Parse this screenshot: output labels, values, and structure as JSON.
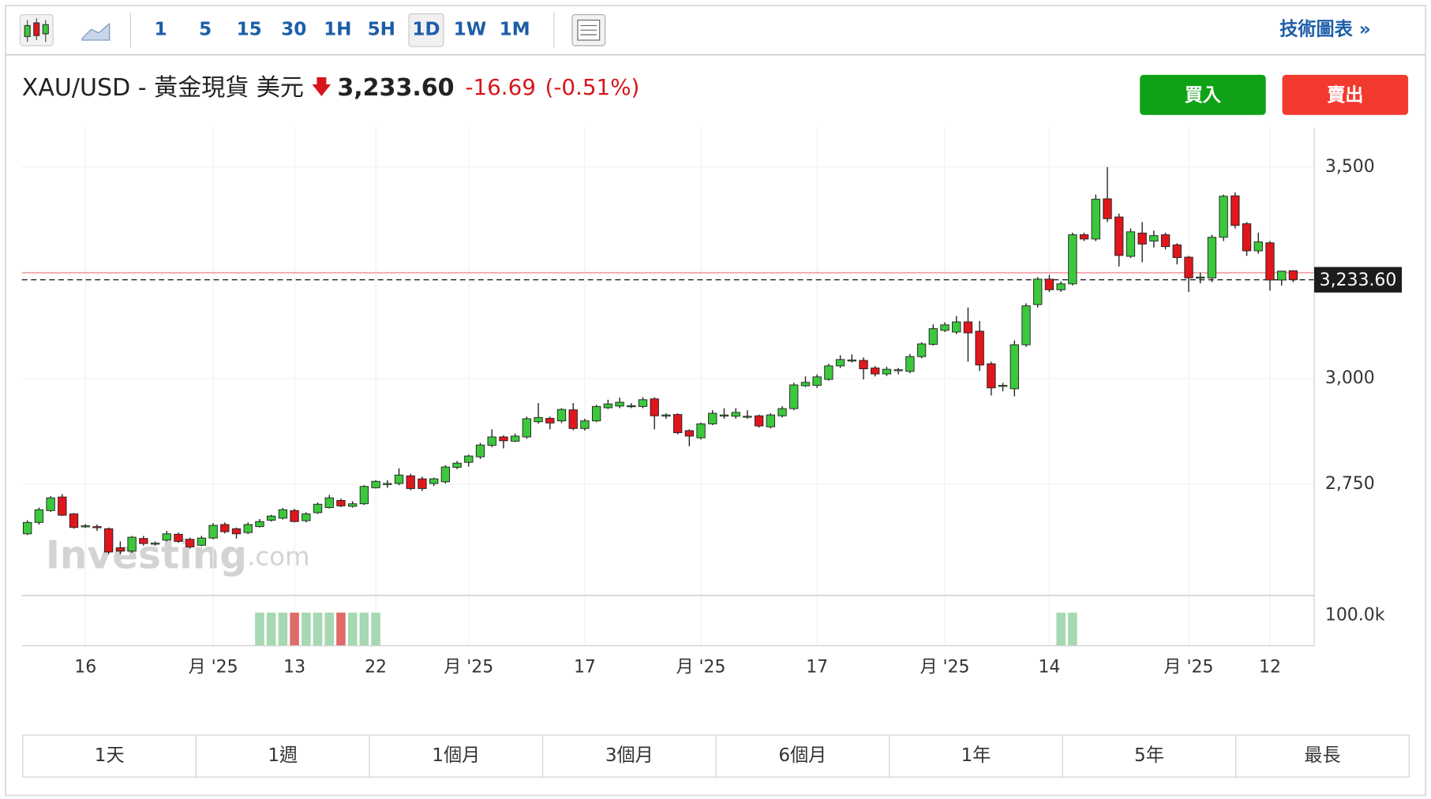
{
  "toolbar": {
    "intervals": [
      "1",
      "5",
      "15",
      "30",
      "1H",
      "5H",
      "1D",
      "1W",
      "1M"
    ],
    "active_interval": 6,
    "technical_link": "技術圖表 »"
  },
  "header": {
    "symbol": "XAU/USD - 黃金現貨 美元",
    "change": "-16.69",
    "change_percent": "(-0.51%)",
    "buy": "買入",
    "sell": "賣出"
  },
  "watermark": {
    "brand": "Investing",
    "suffix": ".com"
  },
  "chart_data": {
    "type": "candlestick",
    "categories": [
      null,
      null,
      null,
      null,
      null,
      "16",
      null,
      null,
      null,
      null,
      null,
      null,
      null,
      null,
      null,
      null,
      "月 '25",
      null,
      null,
      null,
      null,
      null,
      null,
      "13",
      null,
      null,
      null,
      null,
      null,
      null,
      "22",
      null,
      null,
      null,
      null,
      null,
      null,
      null,
      "月 '25",
      null,
      null,
      null,
      null,
      null,
      null,
      null,
      null,
      null,
      "17",
      null,
      null,
      null,
      null,
      null,
      null,
      null,
      null,
      null,
      "月 '25",
      null,
      null,
      null,
      null,
      null,
      null,
      null,
      null,
      null,
      "17",
      null,
      null,
      null,
      null,
      null,
      null,
      null,
      null,
      null,
      null,
      "月 '25",
      null,
      null,
      null,
      null,
      null,
      null,
      null,
      null,
      "14",
      null,
      null,
      null,
      null,
      null,
      null,
      null,
      null,
      null,
      null,
      null,
      "月 '25",
      null,
      null,
      null,
      null,
      null,
      null,
      "12",
      null,
      null
    ],
    "open": [
      2633,
      2660,
      2688,
      2720,
      2680,
      2651,
      2650,
      2645,
      2600,
      2592,
      2622,
      2610,
      2618,
      2632,
      2620,
      2606,
      2623,
      2655,
      2645,
      2636,
      2650,
      2665,
      2670,
      2688,
      2664,
      2683,
      2695,
      2712,
      2698,
      2704,
      2742,
      2750,
      2752,
      2770,
      2763,
      2752,
      2756,
      2790,
      2802,
      2815,
      2842,
      2862,
      2852,
      2862,
      2898,
      2906,
      2900,
      2926,
      2882,
      2900,
      2931,
      2935,
      2935,
      2934,
      2952,
      2913,
      2915,
      2877,
      2860,
      2893,
      2913,
      2911,
      2910,
      2912,
      2886,
      2912,
      2929,
      2983,
      2984,
      2998,
      3030,
      3043,
      3043,
      3025,
      3011,
      3020,
      3017,
      3052,
      3081,
      3114,
      3110,
      3134,
      3112,
      3035,
      2983,
      2976,
      3080,
      3175,
      3235,
      3210,
      3224,
      3340,
      3330,
      3425,
      3382,
      3289,
      3344,
      3325,
      3340,
      3316,
      3287,
      3238,
      3238,
      3334,
      3432,
      3366,
      3302,
      3321,
      3233,
      3255
    ],
    "high": [
      2665,
      2695,
      2722,
      2727,
      2682,
      2656,
      2655,
      2648,
      2615,
      2628,
      2628,
      2615,
      2640,
      2636,
      2624,
      2628,
      2658,
      2660,
      2648,
      2660,
      2668,
      2678,
      2694,
      2692,
      2684,
      2707,
      2725,
      2716,
      2710,
      2748,
      2760,
      2760,
      2788,
      2775,
      2768,
      2766,
      2795,
      2805,
      2820,
      2848,
      2880,
      2866,
      2870,
      2910,
      2942,
      2910,
      2930,
      2942,
      2905,
      2938,
      2950,
      2955,
      2942,
      2956,
      2956,
      2918,
      2918,
      2880,
      2896,
      2925,
      2930,
      2930,
      2925,
      2915,
      2918,
      2935,
      2990,
      3005,
      3010,
      3035,
      3055,
      3057,
      3050,
      3030,
      3028,
      3025,
      3058,
      3086,
      3128,
      3133,
      3148,
      3168,
      3136,
      3040,
      2990,
      3090,
      3178,
      3240,
      3245,
      3230,
      3345,
      3345,
      3435,
      3500,
      3390,
      3355,
      3370,
      3350,
      3345,
      3320,
      3290,
      3250,
      3340,
      3435,
      3440,
      3370,
      3345,
      3325,
      3255,
      3256
    ],
    "low": [
      2630,
      2655,
      2685,
      2675,
      2645,
      2647,
      2640,
      2585,
      2585,
      2588,
      2605,
      2605,
      2615,
      2612,
      2598,
      2604,
      2620,
      2634,
      2622,
      2632,
      2648,
      2662,
      2667,
      2660,
      2660,
      2680,
      2693,
      2696,
      2695,
      2701,
      2740,
      2742,
      2748,
      2736,
      2734,
      2746,
      2752,
      2786,
      2792,
      2810,
      2838,
      2835,
      2850,
      2858,
      2893,
      2880,
      2895,
      2878,
      2877,
      2897,
      2928,
      2930,
      2930,
      2930,
      2880,
      2905,
      2868,
      2840,
      2856,
      2890,
      2905,
      2905,
      2905,
      2884,
      2882,
      2908,
      2925,
      2980,
      2978,
      2995,
      3025,
      3038,
      2998,
      3005,
      3006,
      3010,
      3013,
      3048,
      3078,
      3110,
      3105,
      3040,
      3018,
      2960,
      2970,
      2958,
      3075,
      3168,
      3205,
      3205,
      3220,
      3325,
      3325,
      3370,
      3265,
      3285,
      3275,
      3310,
      3305,
      3270,
      3205,
      3225,
      3228,
      3325,
      3355,
      3290,
      3295,
      3208,
      3220,
      3228
    ],
    "close": [
      2660,
      2690,
      2718,
      2677,
      2648,
      2652,
      2648,
      2590,
      2592,
      2625,
      2610,
      2611,
      2633,
      2615,
      2602,
      2623,
      2653,
      2638,
      2633,
      2655,
      2662,
      2675,
      2690,
      2662,
      2680,
      2703,
      2718,
      2699,
      2704,
      2745,
      2757,
      2752,
      2772,
      2740,
      2740,
      2763,
      2791,
      2800,
      2817,
      2843,
      2862,
      2853,
      2864,
      2905,
      2908,
      2895,
      2927,
      2882,
      2900,
      2934,
      2940,
      2944,
      2936,
      2950,
      2912,
      2914,
      2872,
      2864,
      2893,
      2918,
      2914,
      2920,
      2911,
      2888,
      2914,
      2929,
      2985,
      2991,
      3004,
      3030,
      3045,
      3044,
      3023,
      3011,
      3022,
      3021,
      3052,
      3082,
      3118,
      3127,
      3134,
      3108,
      3032,
      2978,
      2984,
      3080,
      3172,
      3235,
      3210,
      3224,
      3340,
      3330,
      3424,
      3378,
      3291,
      3347,
      3318,
      3338,
      3312,
      3286,
      3238,
      3240,
      3334,
      3431,
      3362,
      3302,
      3323,
      3233,
      3254,
      3233.6
    ],
    "up_color": "#3cc83c",
    "down_color": "#e0161c",
    "ylim": [
      2487,
      3593
    ],
    "yticks": [
      {
        "value": 2750,
        "label": "2,750"
      },
      {
        "value": 3000,
        "label": "3,000"
      },
      {
        "value": 3500,
        "label": "3,500"
      }
    ],
    "grid": true,
    "last_price": {
      "value": 3233.6,
      "label": "3,233.60"
    },
    "previous_close": 3250.29,
    "volume": {
      "values": [
        null,
        null,
        null,
        null,
        null,
        null,
        null,
        null,
        null,
        null,
        null,
        null,
        null,
        null,
        null,
        null,
        null,
        null,
        null,
        null,
        110000,
        110000,
        110000,
        110000,
        110000,
        110000,
        110000,
        110000,
        110000,
        110000,
        110000,
        null,
        null,
        null,
        null,
        null,
        null,
        null,
        null,
        null,
        null,
        null,
        null,
        null,
        null,
        null,
        null,
        null,
        null,
        null,
        null,
        null,
        null,
        null,
        null,
        null,
        null,
        null,
        null,
        null,
        null,
        null,
        null,
        null,
        null,
        null,
        null,
        null,
        null,
        null,
        null,
        null,
        null,
        null,
        null,
        null,
        null,
        null,
        null,
        null,
        null,
        null,
        null,
        null,
        null,
        null,
        null,
        null,
        null,
        110000,
        110000,
        null,
        null,
        null,
        null,
        null,
        null,
        null,
        null,
        null,
        null,
        null,
        null,
        null,
        null,
        null,
        null,
        null,
        null,
        null
      ],
      "up_color": "#a6d8b2",
      "down_color": "#e06a6a",
      "ylim": [
        0,
        163600
      ],
      "yticks": [
        {
          "value": 100000,
          "label": "100.0k"
        }
      ]
    }
  },
  "ranges": [
    "1天",
    "1週",
    "1個月",
    "3個月",
    "6個月",
    "1年",
    "5年",
    "最長"
  ]
}
